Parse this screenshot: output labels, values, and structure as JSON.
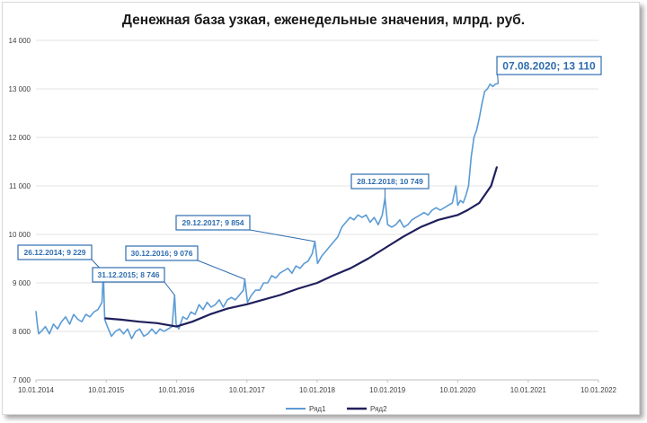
{
  "chart_data": {
    "type": "line",
    "title": "Денежная база узкая, еженедельные значения, млрд. руб.",
    "xlabel": "",
    "ylabel": "",
    "ylim": [
      7000,
      14000
    ],
    "xlim": [
      "2014-01-10",
      "2022-01-10"
    ],
    "y_ticks": [
      7000,
      8000,
      9000,
      10000,
      11000,
      12000,
      13000,
      14000
    ],
    "y_tick_labels": [
      "7 000",
      "8 000",
      "9 000",
      "10 000",
      "11 000",
      "12 000",
      "13 000",
      "14 000"
    ],
    "x_ticks": [
      "2014-01-10",
      "2015-01-10",
      "2016-01-10",
      "2017-01-10",
      "2018-01-10",
      "2019-01-10",
      "2020-01-10",
      "2021-01-10",
      "2022-01-10"
    ],
    "x_tick_labels": [
      "10.01.2014",
      "10.01.2015",
      "10.01.2016",
      "10.01.2017",
      "10.01.2018",
      "10.01.2019",
      "10.01.2020",
      "10.01.2021",
      "10.01.2022"
    ],
    "grid": "horizontal",
    "legend_position": "bottom",
    "colors": {
      "series1": "#5b9bd5",
      "series2": "#1f1f5c",
      "annotation": "#2f6db0"
    },
    "series": [
      {
        "name": "Ряд1",
        "x": [
          "2014-01-10",
          "2014-01-17",
          "2014-01-24",
          "2014-02-07",
          "2014-02-28",
          "2014-03-21",
          "2014-04-11",
          "2014-05-02",
          "2014-05-23",
          "2014-06-13",
          "2014-07-04",
          "2014-07-25",
          "2014-08-15",
          "2014-09-05",
          "2014-09-26",
          "2014-10-17",
          "2014-11-07",
          "2014-11-28",
          "2014-12-19",
          "2014-12-26",
          "2015-01-02",
          "2015-01-16",
          "2015-02-06",
          "2015-02-27",
          "2015-03-20",
          "2015-04-10",
          "2015-05-01",
          "2015-05-22",
          "2015-06-12",
          "2015-07-03",
          "2015-07-24",
          "2015-08-14",
          "2015-09-04",
          "2015-09-25",
          "2015-10-16",
          "2015-11-06",
          "2015-11-27",
          "2015-12-18",
          "2015-12-31",
          "2016-01-08",
          "2016-01-22",
          "2016-02-12",
          "2016-03-04",
          "2016-03-25",
          "2016-04-15",
          "2016-05-06",
          "2016-05-27",
          "2016-06-17",
          "2016-07-08",
          "2016-07-29",
          "2016-08-19",
          "2016-09-09",
          "2016-09-30",
          "2016-10-21",
          "2016-11-11",
          "2016-12-02",
          "2016-12-23",
          "2016-12-30",
          "2017-01-13",
          "2017-02-03",
          "2017-02-24",
          "2017-03-17",
          "2017-04-07",
          "2017-04-28",
          "2017-05-19",
          "2017-06-09",
          "2017-06-30",
          "2017-07-21",
          "2017-08-11",
          "2017-09-01",
          "2017-09-22",
          "2017-10-13",
          "2017-11-03",
          "2017-11-24",
          "2017-12-15",
          "2017-12-29",
          "2018-01-12",
          "2018-02-02",
          "2018-02-23",
          "2018-03-16",
          "2018-04-06",
          "2018-04-27",
          "2018-05-18",
          "2018-06-08",
          "2018-06-29",
          "2018-07-20",
          "2018-08-10",
          "2018-08-31",
          "2018-09-21",
          "2018-10-12",
          "2018-11-02",
          "2018-11-23",
          "2018-12-14",
          "2018-12-28",
          "2019-01-11",
          "2019-02-01",
          "2019-02-22",
          "2019-03-15",
          "2019-04-05",
          "2019-04-26",
          "2019-05-17",
          "2019-06-07",
          "2019-06-28",
          "2019-07-19",
          "2019-08-09",
          "2019-08-30",
          "2019-09-20",
          "2019-10-11",
          "2019-11-01",
          "2019-11-22",
          "2019-12-13",
          "2019-12-31",
          "2020-01-10",
          "2020-01-24",
          "2020-02-07",
          "2020-02-21",
          "2020-03-06",
          "2020-03-20",
          "2020-04-03",
          "2020-04-17",
          "2020-05-01",
          "2020-05-15",
          "2020-05-29",
          "2020-06-12",
          "2020-06-26",
          "2020-07-10",
          "2020-07-24",
          "2020-08-07"
        ],
        "values": [
          8420,
          8150,
          7950,
          8000,
          8100,
          7950,
          8150,
          8050,
          8200,
          8300,
          8150,
          8350,
          8250,
          8200,
          8350,
          8300,
          8400,
          8450,
          8600,
          9229,
          8250,
          8100,
          7900,
          8000,
          8050,
          7950,
          8050,
          7850,
          8000,
          8050,
          7900,
          7950,
          8050,
          7950,
          8050,
          8000,
          8050,
          8100,
          8746,
          8150,
          8050,
          8300,
          8250,
          8400,
          8350,
          8550,
          8450,
          8600,
          8500,
          8550,
          8650,
          8500,
          8650,
          8700,
          8650,
          8750,
          8850,
          9076,
          8600,
          8750,
          8850,
          8850,
          9000,
          9000,
          9150,
          9100,
          9200,
          9250,
          9300,
          9200,
          9350,
          9300,
          9400,
          9450,
          9600,
          9854,
          9400,
          9550,
          9650,
          9750,
          9850,
          9950,
          10150,
          10250,
          10350,
          10300,
          10400,
          10350,
          10400,
          10250,
          10350,
          10200,
          10400,
          10749,
          10200,
          10150,
          10200,
          10300,
          10150,
          10200,
          10300,
          10350,
          10400,
          10450,
          10400,
          10500,
          10550,
          10500,
          10550,
          10600,
          10650,
          11000,
          10600,
          10700,
          10650,
          10800,
          11000,
          11600,
          12000,
          12150,
          12400,
          12700,
          12950,
          13000,
          13100,
          13050,
          13100,
          13110
        ]
      },
      {
        "name": "Ряд2",
        "x": [
          "2015-01-02",
          "2015-04-01",
          "2015-07-01",
          "2015-10-01",
          "2016-01-10",
          "2016-04-01",
          "2016-07-01",
          "2016-10-01",
          "2017-01-10",
          "2017-04-01",
          "2017-07-01",
          "2017-10-01",
          "2018-01-10",
          "2018-04-01",
          "2018-07-01",
          "2018-10-01",
          "2019-01-10",
          "2019-04-01",
          "2019-07-01",
          "2019-10-01",
          "2020-01-10",
          "2020-03-01",
          "2020-05-01",
          "2020-07-01",
          "2020-08-01"
        ],
        "values": [
          8270,
          8240,
          8200,
          8170,
          8100,
          8200,
          8350,
          8470,
          8560,
          8650,
          8750,
          8880,
          9000,
          9150,
          9300,
          9500,
          9750,
          9950,
          10150,
          10300,
          10400,
          10500,
          10650,
          11000,
          11400
        ]
      }
    ],
    "annotations": [
      {
        "x": "2014-12-26",
        "y": 9229,
        "text": "26.12.2014; 9 229"
      },
      {
        "x": "2015-12-31",
        "y": 8746,
        "text": "31.12.2015; 8 746"
      },
      {
        "x": "2016-12-30",
        "y": 9076,
        "text": "30.12.2016; 9 076"
      },
      {
        "x": "2017-12-29",
        "y": 9854,
        "text": "29.12.2017; 9 854"
      },
      {
        "x": "2018-12-28",
        "y": 10749,
        "text": "28.12.2018; 10 749"
      },
      {
        "x": "2020-08-07",
        "y": 13110,
        "text": "07.08.2020; 13 110"
      }
    ]
  }
}
